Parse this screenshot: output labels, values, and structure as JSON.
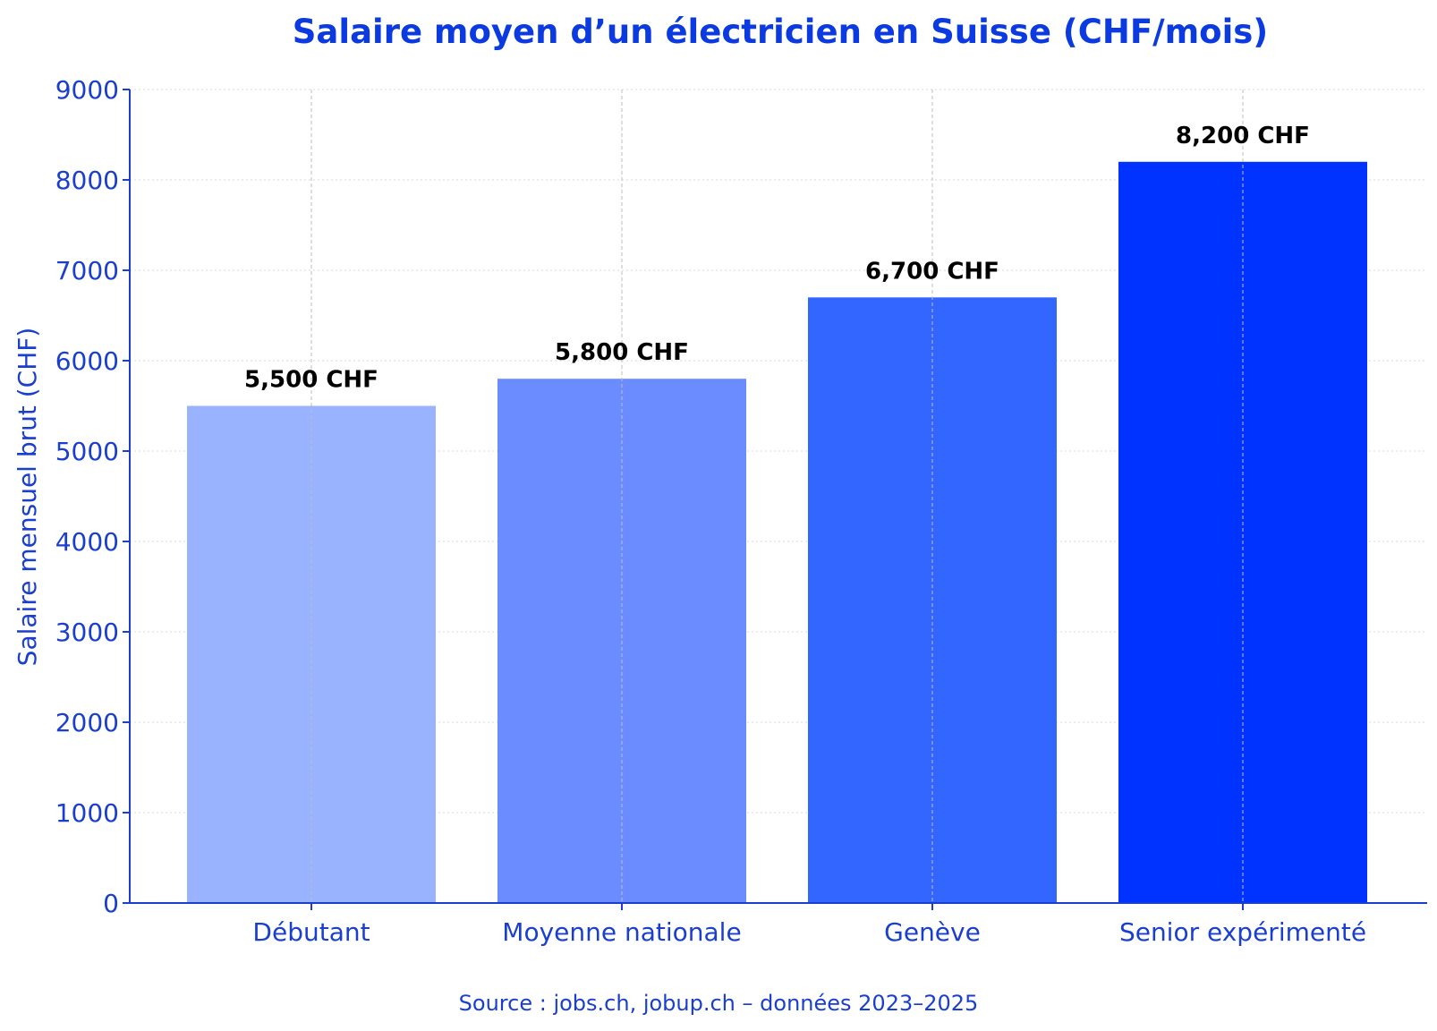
{
  "chart_data": {
    "type": "bar",
    "title": "Salaire moyen d’un électricien en Suisse (CHF/mois)",
    "xlabel": "",
    "ylabel": "Salaire mensuel brut (CHF)",
    "ylim": [
      0,
      9000
    ],
    "yticks": [
      "0",
      "1000",
      "2000",
      "3000",
      "4000",
      "5000",
      "6000",
      "7000",
      "8000",
      "9000"
    ],
    "categories": [
      "Débutant",
      "Moyenne nationale",
      "Genève",
      "Senior expérimenté"
    ],
    "values": [
      5500,
      5800,
      6700,
      8200
    ],
    "value_labels": [
      "5,500 CHF",
      "5,800 CHF",
      "6,700 CHF",
      "8,200 CHF"
    ],
    "bar_colors": [
      "#99b3ff",
      "#6b8cff",
      "#3366ff",
      "#0033ff"
    ],
    "grid": true,
    "source": "Source : jobs.ch, jobup.ch – données 2023–2025"
  },
  "colors": {
    "text": "#1a3fcf",
    "title": "#0b3be0",
    "axis": "#1a3fcf",
    "grid": "#d9d9d9"
  }
}
